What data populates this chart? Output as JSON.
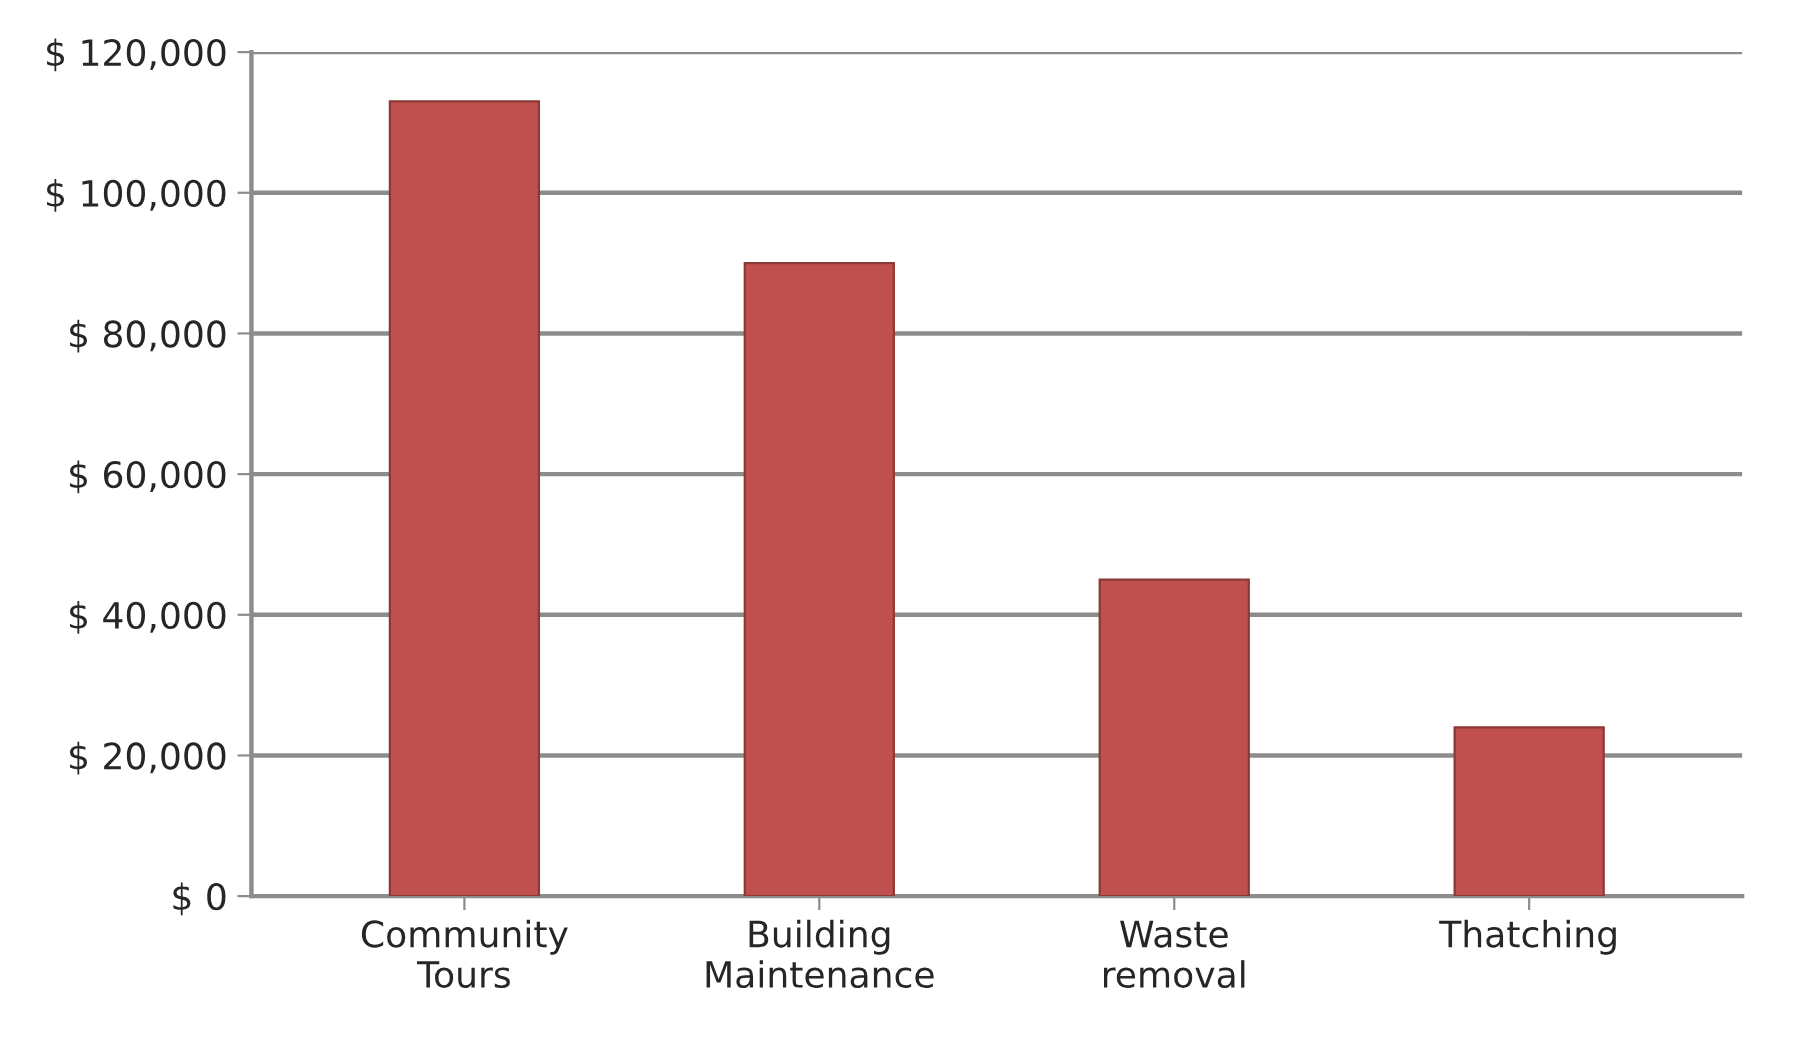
{
  "chart_data": {
    "type": "bar",
    "categories": [
      "Community\nTours",
      "Building\nMaintenance",
      "Waste\nremoval",
      "Thatching"
    ],
    "values": [
      113000,
      90000,
      45000,
      24000
    ],
    "color": "#c0504d",
    "ylim": [
      0,
      120000
    ],
    "yticks": [
      {
        "value": 0,
        "label": "$ 0"
      },
      {
        "value": 20000,
        "label": "$ 20,000"
      },
      {
        "value": 40000,
        "label": "$ 40,000"
      },
      {
        "value": 60000,
        "label": "$ 60,000"
      },
      {
        "value": 80000,
        "label": "$ 80,000"
      },
      {
        "value": 100000,
        "label": "$ 100,000"
      },
      {
        "value": 120000,
        "label": "$ 120,000"
      }
    ],
    "grid": "y"
  }
}
